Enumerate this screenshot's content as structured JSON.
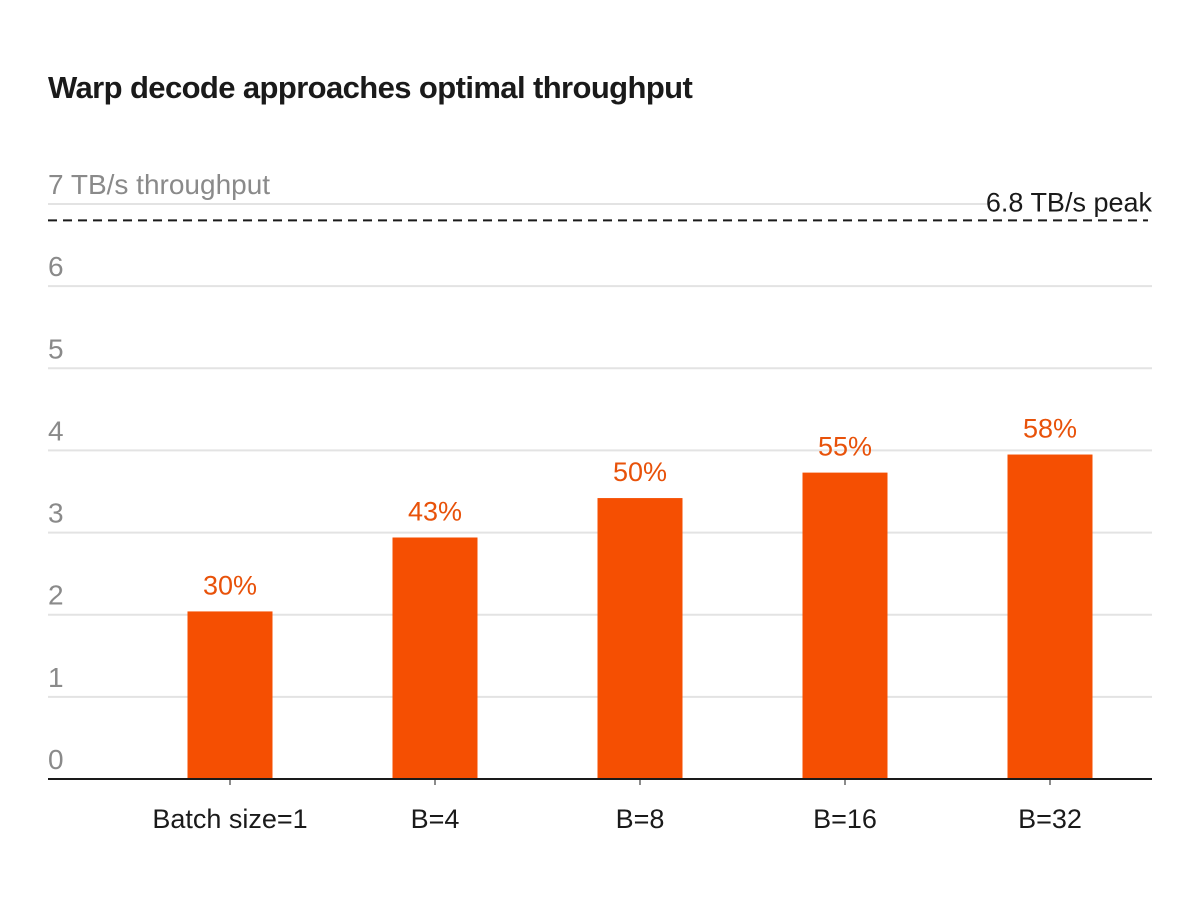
{
  "chart_data": {
    "type": "bar",
    "title": "Warp decode approaches optimal throughput",
    "xlabel": "",
    "ylabel": "TB/s throughput",
    "categories": [
      "Batch size=1",
      "B=4",
      "B=8",
      "B=16",
      "B=32"
    ],
    "values": [
      2.04,
      2.94,
      3.42,
      3.73,
      3.95
    ],
    "data_labels": [
      "30%",
      "43%",
      "50%",
      "55%",
      "58%"
    ],
    "ylim": [
      0,
      7
    ],
    "y_ticks": [
      0,
      1,
      2,
      3,
      4,
      5,
      6,
      7
    ],
    "y_tick_labels": [
      "0",
      "1",
      "2",
      "3",
      "4",
      "5",
      "6",
      "7 TB/s throughput"
    ],
    "grid": true,
    "reference_line": {
      "value": 6.8,
      "label": "6.8 TB/s peak",
      "style": "dashed"
    },
    "colors": {
      "bar": "#f54f02",
      "label": "#e8520a",
      "grid": "#e3e3e3",
      "axis": "#1a1a1a",
      "reference": "#1a1a1a"
    }
  }
}
